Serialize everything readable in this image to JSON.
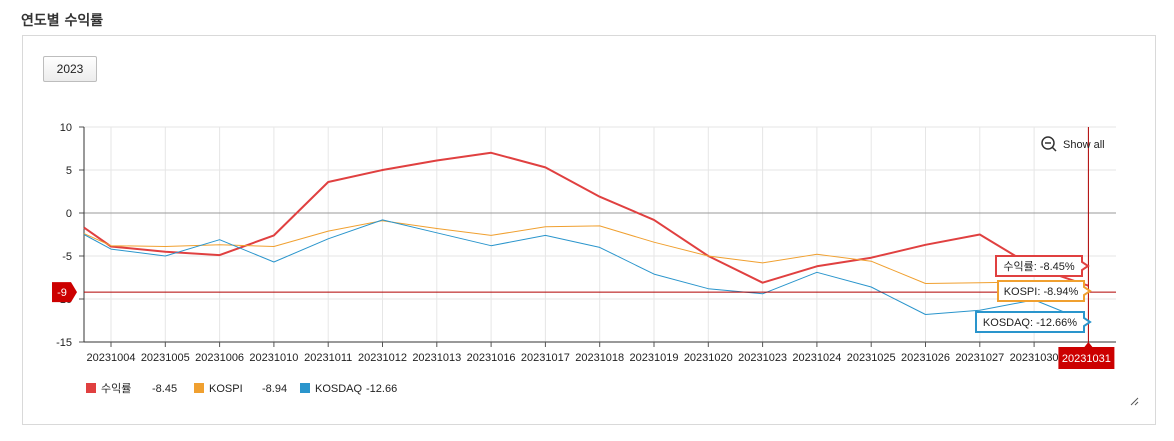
{
  "section": {
    "title": "연도별 수익률"
  },
  "year_selector": {
    "value": "2023"
  },
  "zoom": {
    "label": "Show all",
    "icon": "zoom-out-icon"
  },
  "crosshair": {
    "x_label": "20231031",
    "y_label": "-9",
    "y_value": -9.2
  },
  "legend": [
    {
      "name": "수익률",
      "value": "-8.45",
      "color": "#e04040"
    },
    {
      "name": "KOSPI",
      "value": "-8.94",
      "color": "#f0a030"
    },
    {
      "name": "KOSDAQ",
      "value": "-12.66",
      "color": "#2a95cc"
    }
  ],
  "tooltips": [
    {
      "text": "수익률: -8.45%",
      "color": "#e04040"
    },
    {
      "text": "KOSPI: -8.94%",
      "color": "#f0a030"
    },
    {
      "text": "KOSDAQ: -12.66%",
      "color": "#2a95cc"
    }
  ],
  "chart_data": {
    "type": "line",
    "categories": [
      "20231004",
      "20231005",
      "20231006",
      "20231010",
      "20231011",
      "20231012",
      "20231013",
      "20231016",
      "20231017",
      "20231018",
      "20231019",
      "20231020",
      "20231023",
      "20231024",
      "20231025",
      "20231026",
      "20231027",
      "20231030",
      "20231031"
    ],
    "yticks": [
      10,
      5,
      0,
      -5,
      -10,
      -15
    ],
    "ylim": [
      -15,
      10
    ],
    "grid": true,
    "legend_position": "bottom-left",
    "series": [
      {
        "name": "수익률",
        "color": "#e04040",
        "width": 2,
        "start": -1.7,
        "values": [
          -3.9,
          -4.5,
          -4.9,
          -2.6,
          3.6,
          5.0,
          6.1,
          7.0,
          5.3,
          1.9,
          -0.8,
          -5.0,
          -8.1,
          -6.2,
          -5.2,
          -3.7,
          -2.5,
          -6.3,
          -8.45
        ]
      },
      {
        "name": "KOSPI",
        "color": "#f0a030",
        "width": 1,
        "start": -2.4,
        "values": [
          -3.8,
          -3.9,
          -3.7,
          -3.9,
          -2.1,
          -0.9,
          -1.8,
          -2.6,
          -1.6,
          -1.5,
          -3.4,
          -5.0,
          -5.8,
          -4.8,
          -5.6,
          -8.2,
          -8.1,
          -8.0,
          -8.94
        ]
      },
      {
        "name": "KOSDAQ",
        "color": "#2a95cc",
        "width": 1,
        "start": -2.5,
        "values": [
          -4.2,
          -5.0,
          -3.1,
          -5.7,
          -3.0,
          -0.8,
          -2.3,
          -3.8,
          -2.6,
          -4.0,
          -7.1,
          -8.8,
          -9.4,
          -6.9,
          -8.6,
          -11.8,
          -11.3,
          -10.1,
          -12.66
        ]
      }
    ]
  }
}
